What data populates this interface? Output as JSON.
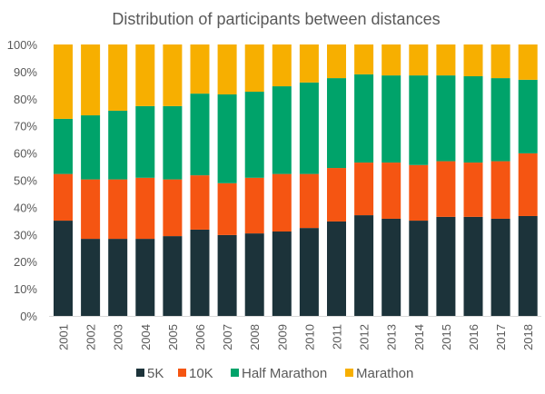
{
  "chart_data": {
    "type": "bar",
    "stacked": true,
    "normalized": true,
    "title": "Distribution of participants between distances",
    "xlabel": "",
    "ylabel": "",
    "ylim": [
      0,
      100
    ],
    "yticks": [
      "0%",
      "10%",
      "20%",
      "30%",
      "40%",
      "50%",
      "60%",
      "70%",
      "80%",
      "90%",
      "100%"
    ],
    "grid": false,
    "legend_position": "bottom",
    "categories": [
      "2001",
      "2002",
      "2003",
      "2004",
      "2005",
      "2006",
      "2007",
      "2008",
      "2009",
      "2010",
      "2011",
      "2012",
      "2013",
      "2014",
      "2015",
      "2016",
      "2017",
      "2018"
    ],
    "series": [
      {
        "name": "5K",
        "color": "#1c333a",
        "values": [
          35.1,
          28.4,
          28.4,
          28.4,
          29.4,
          31.8,
          29.8,
          30.4,
          31.1,
          32.4,
          34.8,
          37.1,
          35.8,
          35.1,
          36.5,
          36.5,
          35.8,
          36.8
        ]
      },
      {
        "name": "10K",
        "color": "#f55512",
        "values": [
          17.2,
          21.9,
          21.9,
          22.5,
          20.9,
          20.0,
          19.1,
          20.5,
          21.2,
          19.9,
          19.7,
          19.4,
          20.7,
          20.5,
          20.5,
          20.0,
          21.2,
          23.1
        ]
      },
      {
        "name": "Half Marathon",
        "color": "#00a36a",
        "values": [
          20.3,
          23.6,
          25.3,
          26.4,
          27.0,
          30.1,
          32.7,
          31.7,
          32.3,
          33.7,
          33.1,
          32.5,
          32.1,
          33.0,
          31.6,
          31.8,
          30.6,
          27.1
        ]
      },
      {
        "name": "Marathon",
        "color": "#f7af00",
        "values": [
          27.4,
          26.1,
          24.4,
          22.7,
          22.7,
          18.1,
          18.4,
          17.4,
          15.4,
          14.0,
          12.4,
          11.0,
          11.4,
          11.4,
          11.4,
          11.7,
          12.4,
          13.0
        ]
      }
    ]
  }
}
